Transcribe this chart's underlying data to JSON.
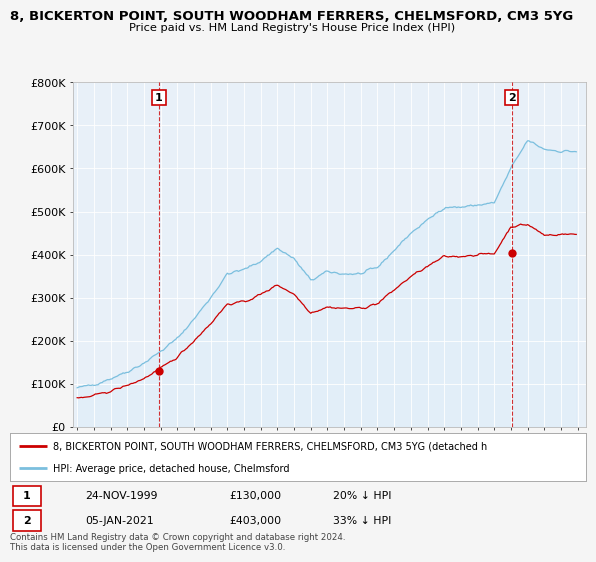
{
  "title": "8, BICKERTON POINT, SOUTH WOODHAM FERRERS, CHELMSFORD, CM3 5YG",
  "subtitle": "Price paid vs. HM Land Registry's House Price Index (HPI)",
  "ylim": [
    0,
    800000
  ],
  "yticks": [
    0,
    100000,
    200000,
    300000,
    400000,
    500000,
    600000,
    700000,
    800000
  ],
  "ytick_labels": [
    "£0",
    "£100K",
    "£200K",
    "£300K",
    "£400K",
    "£500K",
    "£600K",
    "£700K",
    "£800K"
  ],
  "hpi_color": "#7bbfde",
  "hpi_fill_color": "#d6eaf8",
  "price_color": "#cc0000",
  "marker_color": "#cc0000",
  "background_color": "#f5f5f5",
  "plot_bg_color": "#e8f0f8",
  "grid_color": "#ffffff",
  "legend_label_red": "8, BICKERTON POINT, SOUTH WOODHAM FERRERS, CHELMSFORD, CM3 5YG (detached h",
  "legend_label_blue": "HPI: Average price, detached house, Chelmsford",
  "transaction1_date": "24-NOV-1999",
  "transaction1_price": "£130,000",
  "transaction1_hpi": "20% ↓ HPI",
  "transaction1_x": 1999.9,
  "transaction1_y": 130000,
  "transaction2_date": "05-JAN-2021",
  "transaction2_price": "£403,000",
  "transaction2_hpi": "33% ↓ HPI",
  "transaction2_x": 2021.04,
  "transaction2_y": 403000,
  "footnote": "Contains HM Land Registry data © Crown copyright and database right 2024.\nThis data is licensed under the Open Government Licence v3.0.",
  "xlim_left": 1994.75,
  "xlim_right": 2025.5
}
